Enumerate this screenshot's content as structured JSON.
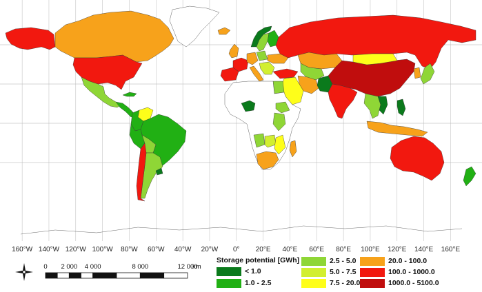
{
  "longitude_labels": [
    "160°W",
    "140°W",
    "120°W",
    "100°W",
    "80°W",
    "60°W",
    "40°W",
    "20°W",
    "0°",
    "20°E",
    "40°E",
    "60°E",
    "80°E",
    "100°E",
    "120°E",
    "140°E",
    "160°E"
  ],
  "longitude_values": [
    -160,
    -140,
    -120,
    -100,
    -80,
    -60,
    -40,
    -20,
    0,
    20,
    40,
    60,
    80,
    100,
    120,
    140,
    160
  ],
  "latitude_gridlines": [
    60,
    30,
    0,
    -30
  ],
  "legend": {
    "title": "Storage potential [GWh]",
    "items": [
      {
        "label": "< 1.0",
        "color": "#0b7a1c"
      },
      {
        "label": "1.0 - 2.5",
        "color": "#21b014"
      },
      {
        "label": "2.5 - 5.0",
        "color": "#8fd636"
      },
      {
        "label": "5.0 - 7.5",
        "color": "#d2ef30"
      },
      {
        "label": "7.5 - 20.0",
        "color": "#fefe1a"
      },
      {
        "label": "20.0 - 100.0",
        "color": "#f7a21b"
      },
      {
        "label": "100.0 - 1000.0",
        "color": "#f2180f"
      },
      {
        "label": "1000.0 - 5100.0",
        "color": "#c00d0d"
      }
    ]
  },
  "scale_bar": {
    "ticks": [
      "0",
      "2 000",
      "4 000",
      "8 000",
      "12 000"
    ],
    "tick_values_km": [
      0,
      2000,
      4000,
      8000,
      12000
    ],
    "unit": "km"
  },
  "regions": [
    {
      "name": "alaska",
      "class_index": 6
    },
    {
      "name": "canada",
      "class_index": 5
    },
    {
      "name": "greenland",
      "class_index": null
    },
    {
      "name": "united-states",
      "class_index": 6
    },
    {
      "name": "mexico",
      "class_index": 2
    },
    {
      "name": "central-america",
      "class_index": 1
    },
    {
      "name": "cuba",
      "class_index": 1
    },
    {
      "name": "venezuela",
      "class_index": 4
    },
    {
      "name": "colombia",
      "class_index": 1
    },
    {
      "name": "brazil",
      "class_index": 1
    },
    {
      "name": "peru",
      "class_index": 1
    },
    {
      "name": "bolivia",
      "class_index": 2
    },
    {
      "name": "argentina",
      "class_index": 2
    },
    {
      "name": "chile",
      "class_index": 6
    },
    {
      "name": "uruguay",
      "class_index": 0
    },
    {
      "name": "iceland",
      "class_index": 5
    },
    {
      "name": "norway",
      "class_index": 0
    },
    {
      "name": "sweden",
      "class_index": 2
    },
    {
      "name": "finland",
      "class_index": 1
    },
    {
      "name": "united-kingdom",
      "class_index": 5
    },
    {
      "name": "france",
      "class_index": 6
    },
    {
      "name": "iberia",
      "class_index": 6
    },
    {
      "name": "germany",
      "class_index": 5
    },
    {
      "name": "poland",
      "class_index": 2
    },
    {
      "name": "italy",
      "class_index": 5
    },
    {
      "name": "balkans",
      "class_index": 3
    },
    {
      "name": "ukraine",
      "class_index": 5
    },
    {
      "name": "turkey",
      "class_index": 6
    },
    {
      "name": "russia",
      "class_index": 6
    },
    {
      "name": "kazakhstan",
      "class_index": 5
    },
    {
      "name": "central-asia",
      "class_index": 2
    },
    {
      "name": "iran",
      "class_index": 5
    },
    {
      "name": "middle-east",
      "class_index": 4
    },
    {
      "name": "egypt",
      "class_index": 2
    },
    {
      "name": "pakistan",
      "class_index": 0
    },
    {
      "name": "india",
      "class_index": 6
    },
    {
      "name": "china",
      "class_index": 7
    },
    {
      "name": "mongolia",
      "class_index": 4
    },
    {
      "name": "southeast-asia",
      "class_index": 2
    },
    {
      "name": "vietnam",
      "class_index": 0
    },
    {
      "name": "japan",
      "class_index": 2
    },
    {
      "name": "korea",
      "class_index": 5
    },
    {
      "name": "philippines",
      "class_index": 0
    },
    {
      "name": "indonesia",
      "class_index": 5
    },
    {
      "name": "australia",
      "class_index": 6
    },
    {
      "name": "new-zealand",
      "class_index": 1
    },
    {
      "name": "nigeria",
      "class_index": 0
    },
    {
      "name": "ethiopia",
      "class_index": 2
    },
    {
      "name": "east-africa",
      "class_index": 2
    },
    {
      "name": "zambia",
      "class_index": 3
    },
    {
      "name": "angola",
      "class_index": 2
    },
    {
      "name": "mozambique",
      "class_index": 4
    },
    {
      "name": "south-africa",
      "class_index": 5
    },
    {
      "name": "madagascar",
      "class_index": 5
    }
  ]
}
